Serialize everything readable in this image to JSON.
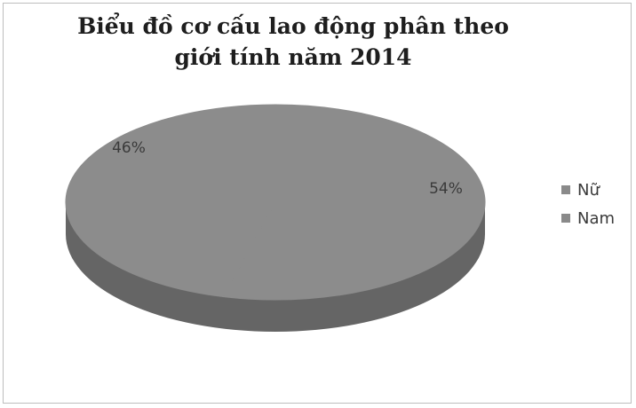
{
  "chart_data": {
    "type": "pie",
    "title": "Biểu đồ cơ cấu lao động phân theo giới tính năm 2014",
    "categories": [
      "Nữ",
      "Nam"
    ],
    "values": [
      46,
      54
    ],
    "data_labels": [
      "46%",
      "54%"
    ],
    "colors": [
      "#8c8c8c",
      "#8c8c8c"
    ],
    "side_color": "#656565",
    "legend_position": "right",
    "style": "3d"
  }
}
